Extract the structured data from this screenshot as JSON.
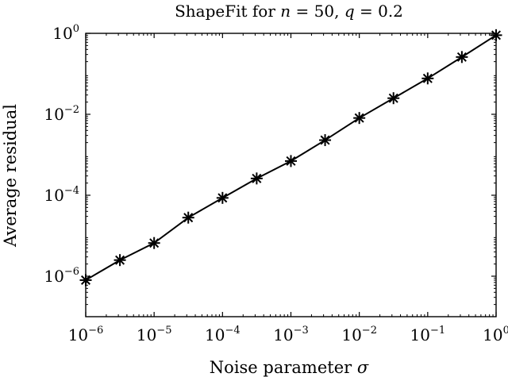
{
  "chart_data": {
    "type": "line",
    "title_parts": {
      "prefix": "ShapeFit for ",
      "n_sym": "n",
      "n_eq": " = 50, ",
      "q_sym": "q",
      "q_eq": " = 0.2"
    },
    "xlabel_parts": {
      "text": "Noise parameter ",
      "sym": "σ"
    },
    "ylabel": "Average residual",
    "x_scale": "log",
    "y_scale": "log",
    "xlim": [
      1e-06,
      1
    ],
    "ylim": [
      1e-07,
      1
    ],
    "x_ticks": [
      {
        "value": 1e-06,
        "base": "10",
        "exp": "−6"
      },
      {
        "value": 1e-05,
        "base": "10",
        "exp": "−5"
      },
      {
        "value": 0.0001,
        "base": "10",
        "exp": "−4"
      },
      {
        "value": 0.001,
        "base": "10",
        "exp": "−3"
      },
      {
        "value": 0.01,
        "base": "10",
        "exp": "−2"
      },
      {
        "value": 0.1,
        "base": "10",
        "exp": "−1"
      },
      {
        "value": 1,
        "base": "10",
        "exp": "0"
      }
    ],
    "y_ticks": [
      {
        "value": 1e-06,
        "base": "10",
        "exp": "−6"
      },
      {
        "value": 0.0001,
        "base": "10",
        "exp": "−4"
      },
      {
        "value": 0.01,
        "base": "10",
        "exp": "−2"
      },
      {
        "value": 1,
        "base": "10",
        "exp": "0"
      }
    ],
    "grid": false,
    "series": [
      {
        "marker": "asterisk",
        "color": "#000000",
        "x": [
          1e-06,
          3.16e-06,
          1e-05,
          3.16e-05,
          0.0001,
          0.000316,
          0.001,
          0.00316,
          0.01,
          0.0316,
          0.1,
          0.316,
          1
        ],
        "y": [
          8e-07,
          2.5e-06,
          6.6e-06,
          2.8e-05,
          8.6e-05,
          0.00026,
          0.0007,
          0.0023,
          0.0081,
          0.025,
          0.077,
          0.26,
          0.9
        ]
      }
    ]
  }
}
